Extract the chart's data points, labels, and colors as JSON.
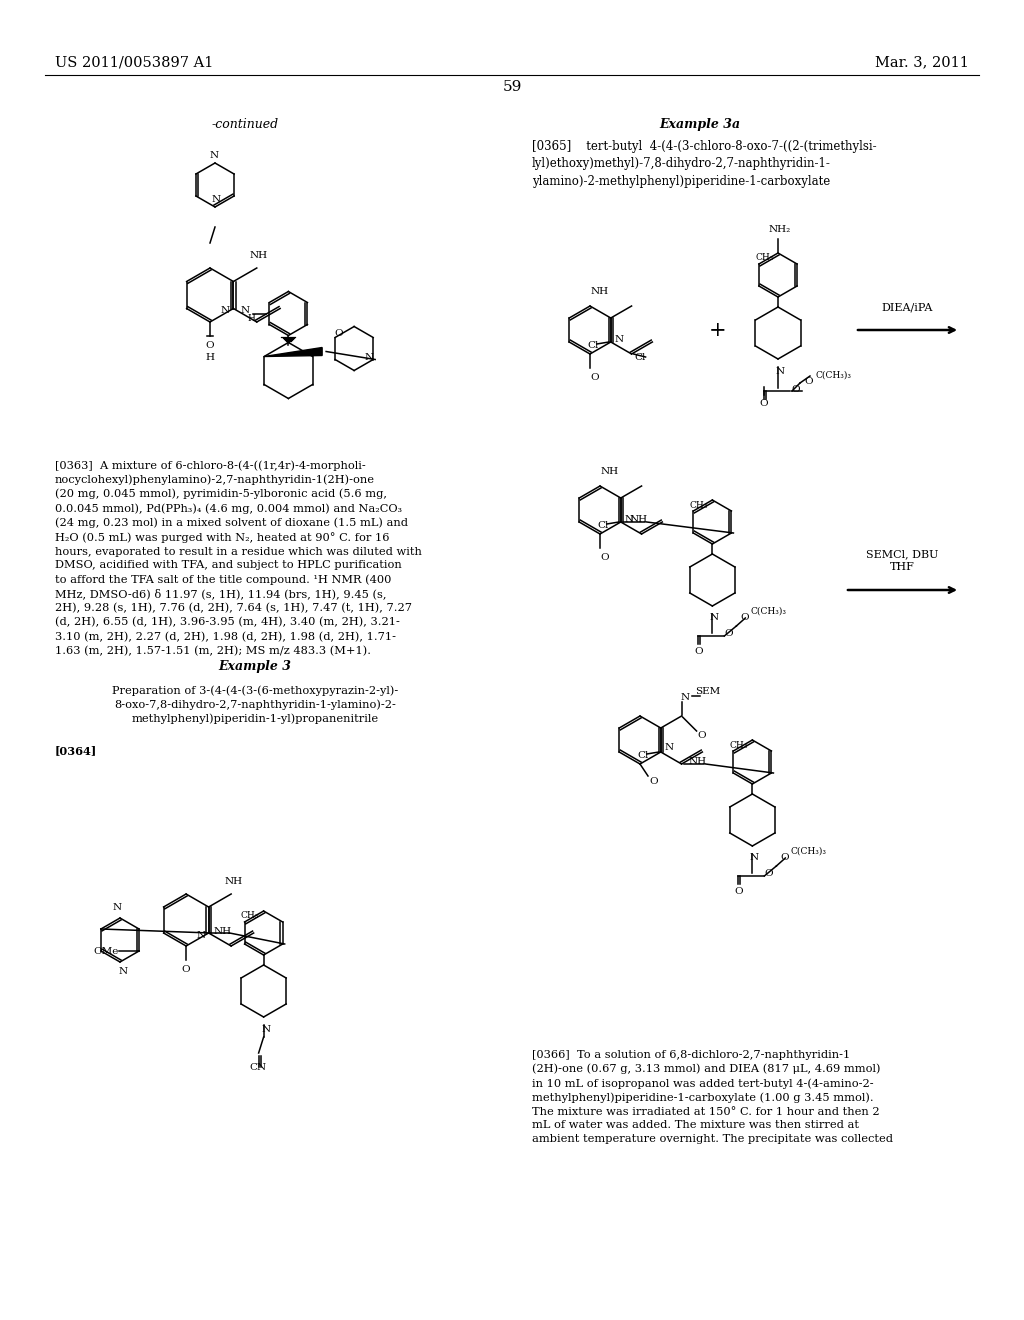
{
  "header_left": "US 2011/0053897 A1",
  "header_right": "Mar. 3, 2011",
  "page_number": "59",
  "continued_label": "-continued",
  "example3a_title": "Example 3a",
  "example3a_text": "[0365]    tert-butyl  4-(4-(3-chloro-8-oxo-7-((2-(trimethylsi-\nlyl)ethoxy)methyl)-7,8-dihydro-2,7-naphthyridin-1-\nylamino)-2-methylphenyl)piperidine-1-carboxylate",
  "diea_label": "DIEA/iPA",
  "semcl_label": "SEMCl, DBU\nTHF",
  "para0363": "[0363]  A mixture of 6-chloro-8-(4-((1r,4r)-4-morpholi-\nnocyclohexyl)phenylamino)-2,7-naphthyridin-1(2H)-one\n(20 mg, 0.045 mmol), pyrimidin-5-ylboronic acid (5.6 mg,\n0.0.045 mmol), Pd(PPh₃)₄ (4.6 mg, 0.004 mmol) and Na₂CO₃\n(24 mg, 0.23 mol) in a mixed solvent of dioxane (1.5 mL) and\nH₂O (0.5 mL) was purged with N₂, heated at 90° C. for 16\nhours, evaporated to result in a residue which was diluted with\nDMSO, acidified with TFA, and subject to HPLC purification\nto afford the TFA salt of the title compound. ¹H NMR (400\nMHz, DMSO-d6) δ 11.97 (s, 1H), 11.94 (brs, 1H), 9.45 (s,\n2H), 9.28 (s, 1H), 7.76 (d, 2H), 7.64 (s, 1H), 7.47 (t, 1H), 7.27\n(d, 2H), 6.55 (d, 1H), 3.96-3.95 (m, 4H), 3.40 (m, 2H), 3.21-\n3.10 (m, 2H), 2.27 (d, 2H), 1.98 (d, 2H), 1.98 (d, 2H), 1.71-\n1.63 (m, 2H), 1.57-1.51 (m, 2H); MS m/z 483.3 (M+1).",
  "example3_title": "Example 3",
  "example3_prep": "Preparation of 3-(4-(4-(3-(6-methoxypyrazin-2-yl)-\n8-oxo-7,8-dihydro-2,7-naphthyridin-1-ylamino)-2-\nmethylphenyl)piperidin-1-yl)propanenitrile",
  "para0364_label": "[0364]",
  "para0366": "[0366]  To a solution of 6,8-dichloro-2,7-naphthyridin-1\n(2H)-one (0.67 g, 3.13 mmol) and DIEA (817 μL, 4.69 mmol)\nin 10 mL of isopropanol was added tert-butyl 4-(4-amino-2-\nmethylphenyl)piperidine-1-carboxylate (1.00 g 3.45 mmol).\nThe mixture was irradiated at 150° C. for 1 hour and then 2\nmL of water was added. The mixture was then stirred at\nambient temperature overnight. The precipitate was collected",
  "bg": "#ffffff",
  "fg": "#000000"
}
